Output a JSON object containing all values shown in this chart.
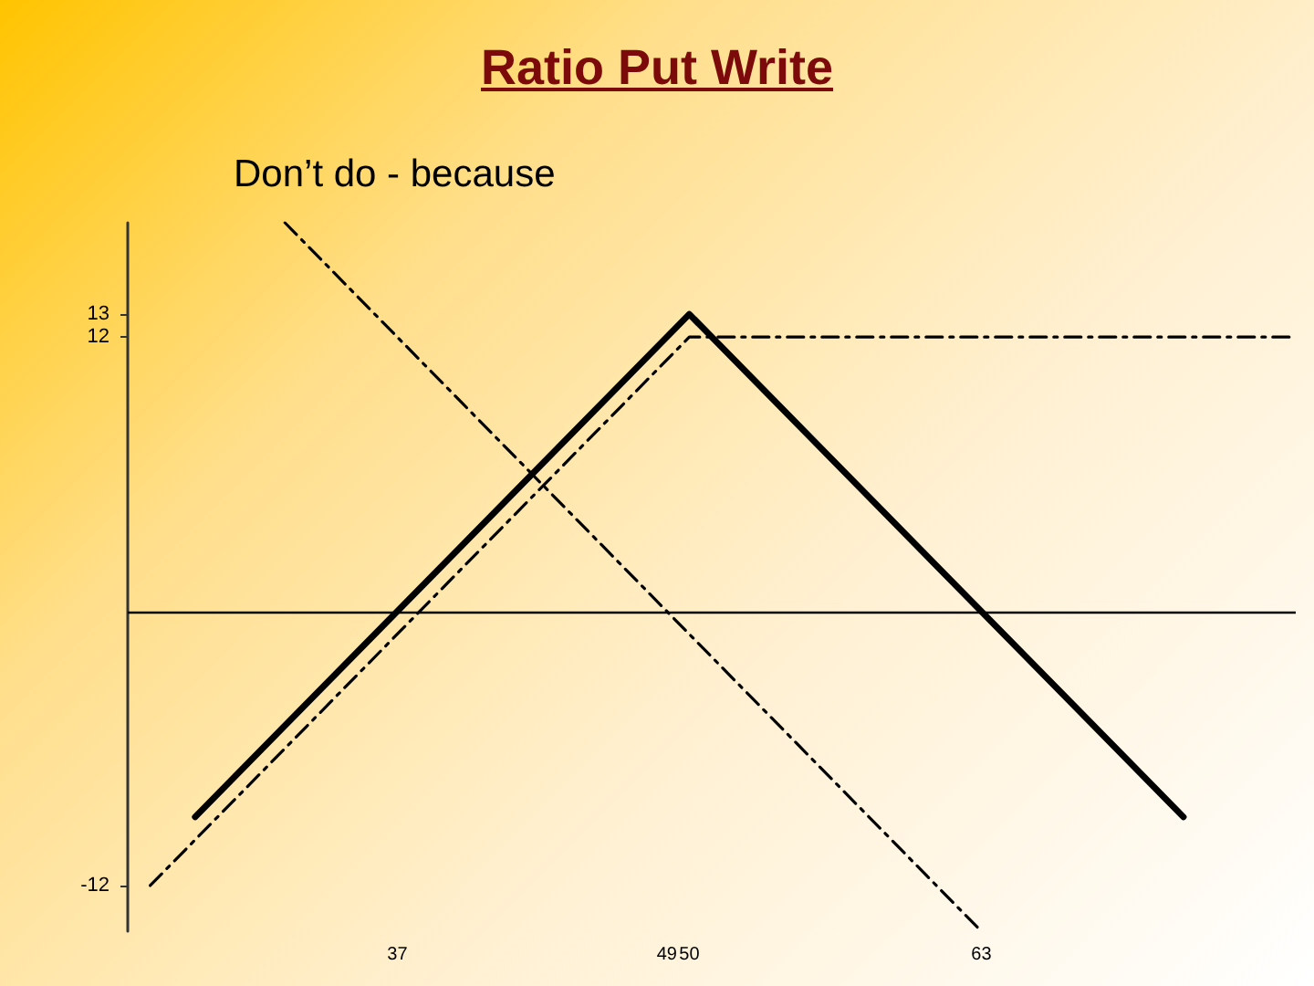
{
  "chart_data": {
    "type": "line",
    "title": "Ratio Put Write",
    "subtitle": "Don’t do - because",
    "series": [
      {
        "color": "#000000",
        "line_style": "solid",
        "x": [
          28,
          50,
          72
        ],
        "values": [
          -9,
          13,
          -9
        ]
      },
      {
        "color": "#000000",
        "line_style": "dashed",
        "x": [
          26,
          50,
          77
        ],
        "values": [
          -12,
          12,
          12
        ]
      },
      {
        "color": "#000000",
        "line_style": "dashed",
        "x": [
          32,
          63
        ],
        "values": [
          17,
          -14
        ]
      }
    ],
    "xlim": [
      25,
      77
    ],
    "xticks": [
      37,
      49,
      50,
      63
    ],
    "ylim": [
      -14,
      17
    ],
    "yticks": [
      13,
      12,
      -12
    ],
    "ref_lines": [
      {
        "axis": "y",
        "value": 0,
        "color": "#000000"
      }
    ],
    "marker": "none",
    "grid": false
  }
}
